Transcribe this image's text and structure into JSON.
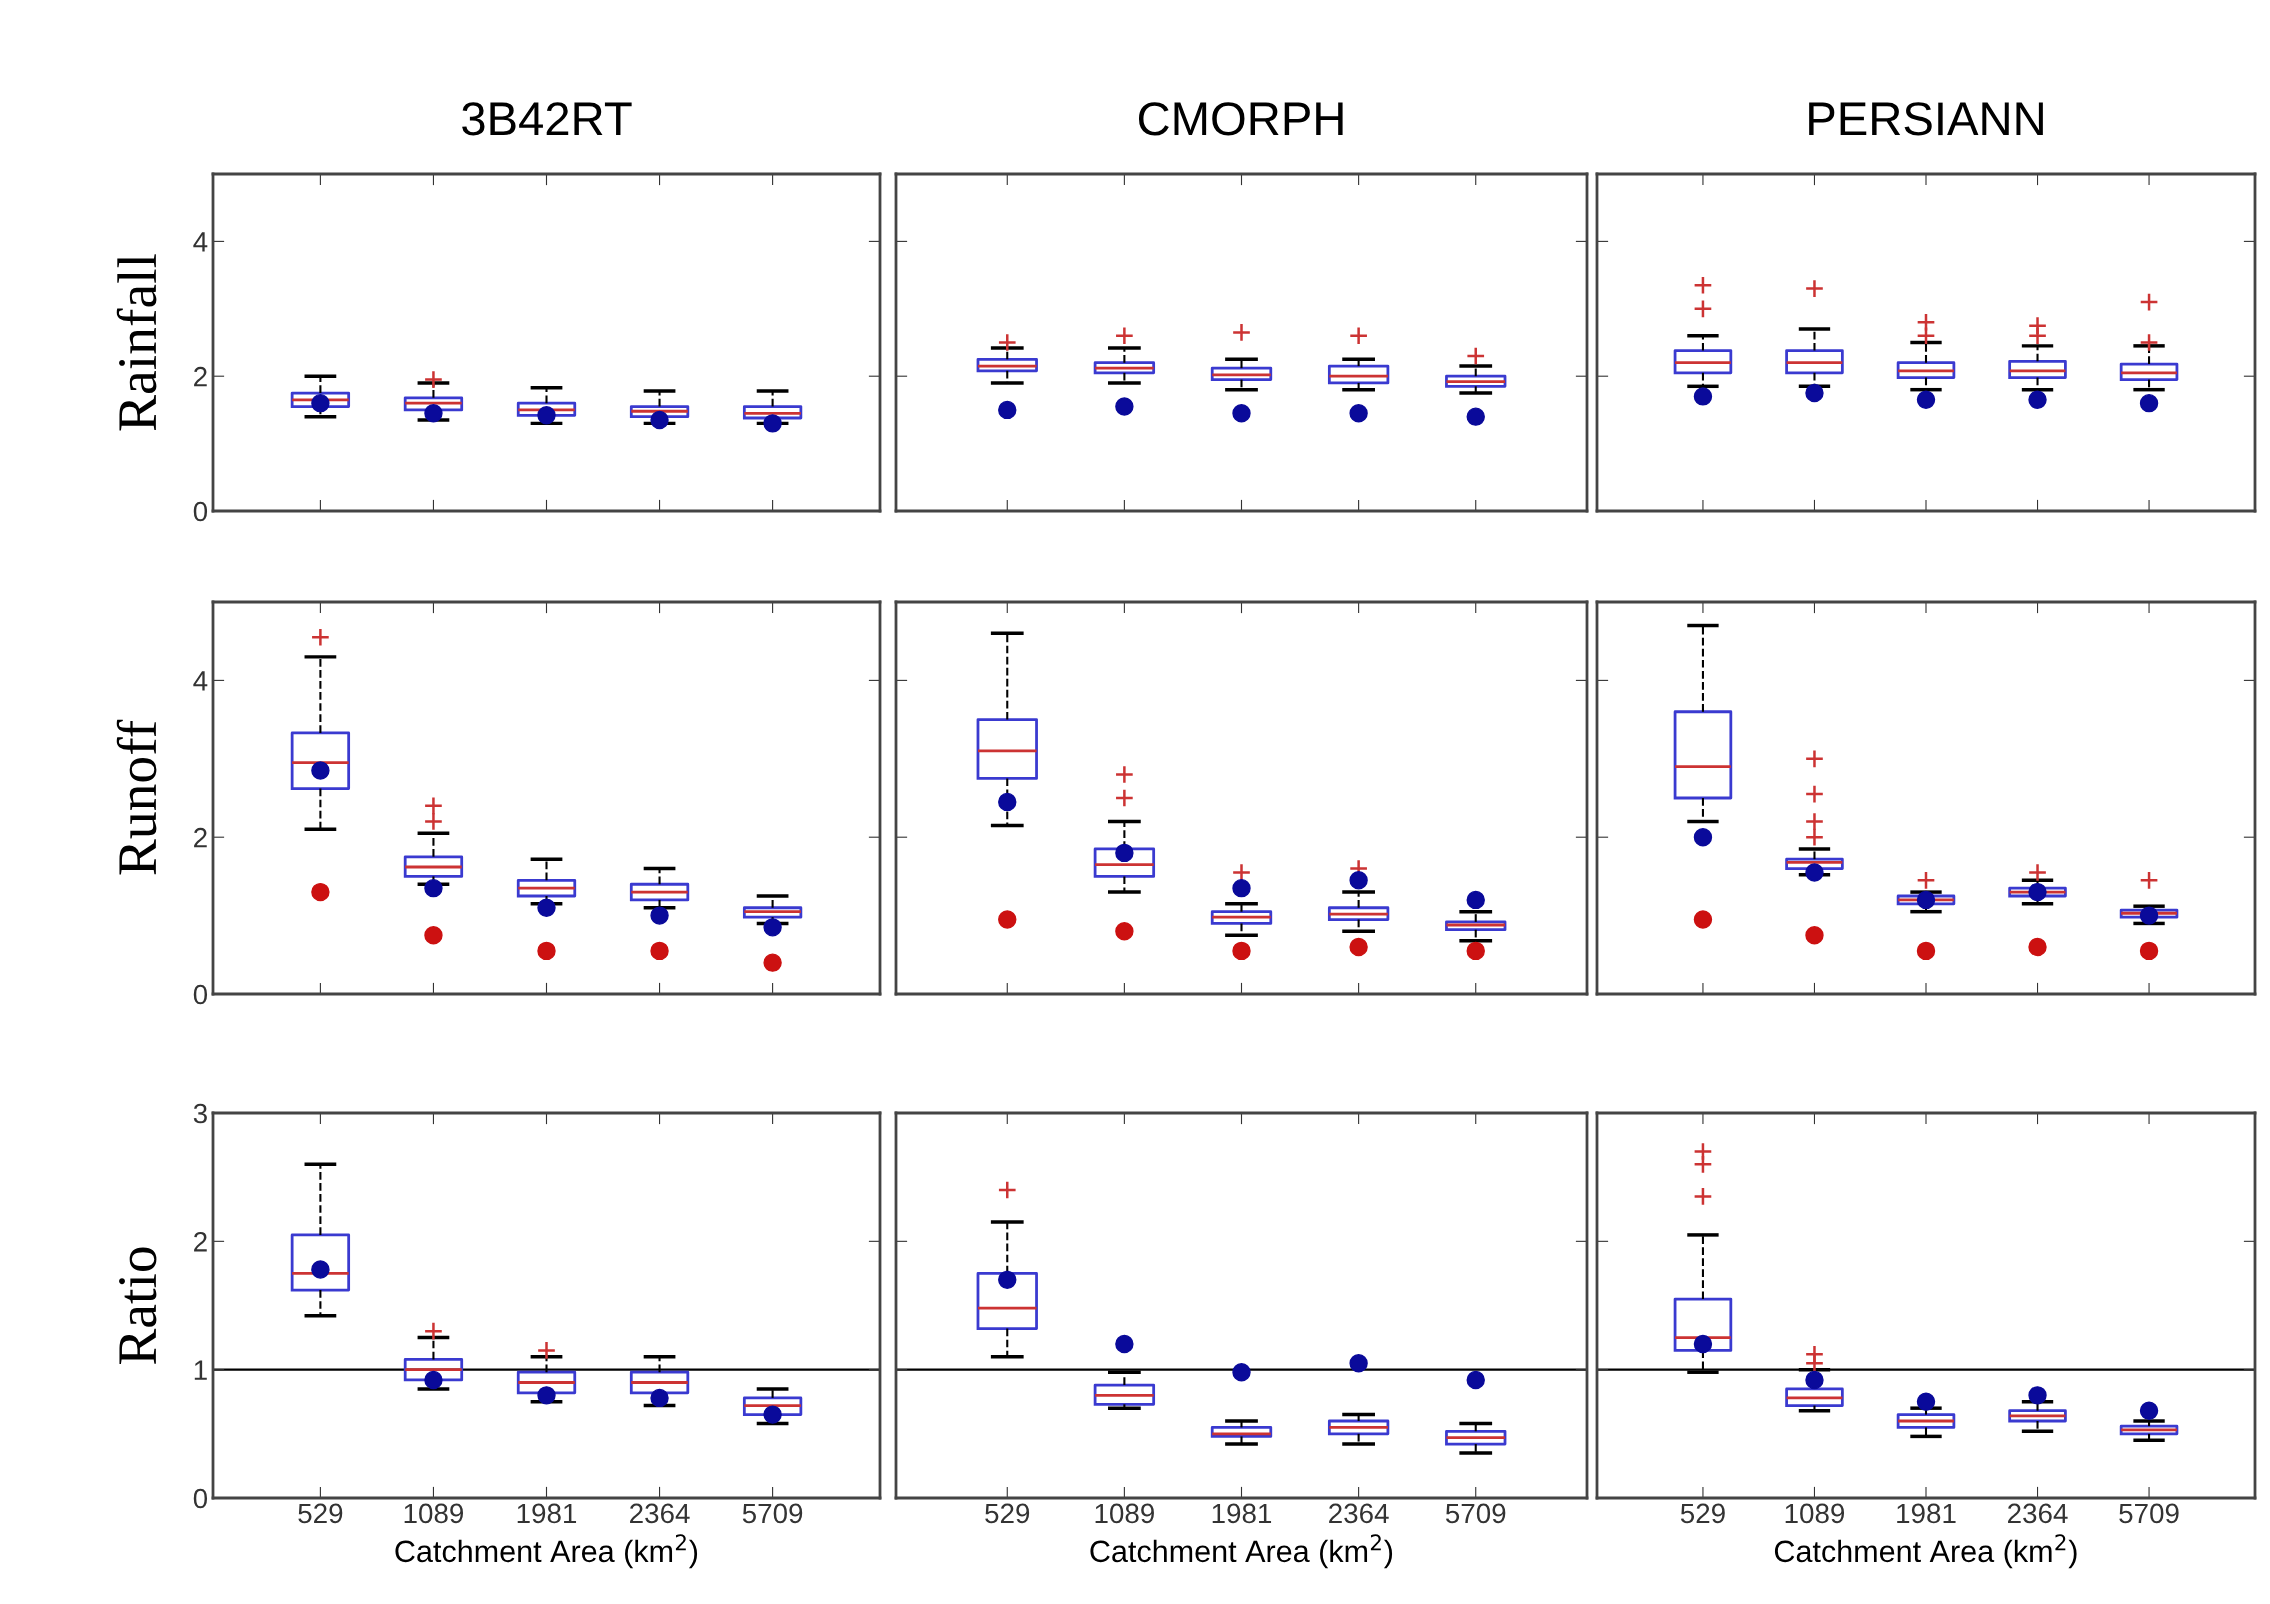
{
  "chart_data": [
    {
      "type": "box",
      "title": "3B42RT",
      "ylabel": "Rainfall",
      "categories": [
        "529",
        "1089",
        "1981",
        "2364",
        "5709"
      ],
      "ylim": [
        0,
        5
      ],
      "yticks": [
        0,
        2,
        4
      ],
      "tick_labels": "y",
      "series": [
        {
          "color": "#3a3ad0",
          "boxes": [
            {
              "low": 1.4,
              "q1": 1.55,
              "median": 1.65,
              "q3": 1.75,
              "high": 2.0
            },
            {
              "low": 1.35,
              "q1": 1.5,
              "median": 1.6,
              "q3": 1.68,
              "high": 1.9,
              "outliers": [
                1.95
              ]
            },
            {
              "low": 1.3,
              "q1": 1.42,
              "median": 1.5,
              "q3": 1.6,
              "high": 1.83
            },
            {
              "low": 1.3,
              "q1": 1.4,
              "median": 1.48,
              "q3": 1.55,
              "high": 1.78
            },
            {
              "low": 1.3,
              "q1": 1.38,
              "median": 1.45,
              "q3": 1.55,
              "high": 1.78
            }
          ]
        },
        {
          "type": "scatter",
          "color": "#0a0a9a",
          "marker": "circle",
          "values": [
            1.6,
            1.45,
            1.42,
            1.35,
            1.3
          ]
        }
      ]
    },
    {
      "type": "box",
      "title": "CMORPH",
      "categories": [
        "529",
        "1089",
        "1981",
        "2364",
        "5709"
      ],
      "ylim": [
        0,
        5
      ],
      "yticks": [
        0,
        2,
        4
      ],
      "tick_labels": false,
      "series": [
        {
          "color": "#3a3ad0",
          "boxes": [
            {
              "low": 1.9,
              "q1": 2.08,
              "median": 2.15,
              "q3": 2.25,
              "high": 2.42,
              "outliers": [
                2.5
              ]
            },
            {
              "low": 1.9,
              "q1": 2.05,
              "median": 2.12,
              "q3": 2.2,
              "high": 2.42,
              "outliers": [
                2.6
              ]
            },
            {
              "low": 1.8,
              "q1": 1.95,
              "median": 2.02,
              "q3": 2.12,
              "high": 2.25,
              "outliers": [
                2.65
              ]
            },
            {
              "low": 1.8,
              "q1": 1.9,
              "median": 2.0,
              "q3": 2.15,
              "high": 2.25,
              "outliers": [
                2.6
              ]
            },
            {
              "low": 1.75,
              "q1": 1.85,
              "median": 1.92,
              "q3": 2.0,
              "high": 2.15,
              "outliers": [
                2.3
              ]
            }
          ]
        },
        {
          "type": "scatter",
          "color": "#0a0a9a",
          "marker": "circle",
          "values": [
            1.5,
            1.55,
            1.45,
            1.45,
            1.4
          ]
        }
      ]
    },
    {
      "type": "box",
      "title": "PERSIANN",
      "categories": [
        "529",
        "1089",
        "1981",
        "2364",
        "5709"
      ],
      "ylim": [
        0,
        5
      ],
      "yticks": [
        0,
        2,
        4
      ],
      "tick_labels": false,
      "series": [
        {
          "color": "#3a3ad0",
          "boxes": [
            {
              "low": 1.85,
              "q1": 2.05,
              "median": 2.2,
              "q3": 2.38,
              "high": 2.6,
              "outliers": [
                3.0,
                3.35
              ]
            },
            {
              "low": 1.85,
              "q1": 2.05,
              "median": 2.2,
              "q3": 2.38,
              "high": 2.7,
              "outliers": [
                3.3
              ]
            },
            {
              "low": 1.8,
              "q1": 1.98,
              "median": 2.08,
              "q3": 2.2,
              "high": 2.5,
              "outliers": [
                2.6,
                2.8
              ]
            },
            {
              "low": 1.8,
              "q1": 1.98,
              "median": 2.08,
              "q3": 2.22,
              "high": 2.45,
              "outliers": [
                2.6,
                2.75
              ]
            },
            {
              "low": 1.8,
              "q1": 1.95,
              "median": 2.05,
              "q3": 2.18,
              "high": 2.45,
              "outliers": [
                2.5,
                3.1
              ]
            }
          ]
        },
        {
          "type": "scatter",
          "color": "#0a0a9a",
          "marker": "circle",
          "values": [
            1.7,
            1.75,
            1.65,
            1.65,
            1.6
          ]
        }
      ]
    },
    {
      "type": "box",
      "ylabel": "Runoff",
      "categories": [
        "529",
        "1089",
        "1981",
        "2364",
        "5709"
      ],
      "ylim": [
        0,
        5
      ],
      "yticks": [
        0,
        2,
        4
      ],
      "tick_labels": "y",
      "series": [
        {
          "color": "#3a3ad0",
          "boxes": [
            {
              "low": 2.1,
              "q1": 2.62,
              "median": 2.95,
              "q3": 3.33,
              "high": 4.3,
              "outliers": [
                4.55
              ]
            },
            {
              "low": 1.4,
              "q1": 1.5,
              "median": 1.62,
              "q3": 1.75,
              "high": 2.05,
              "outliers": [
                2.2,
                2.4
              ]
            },
            {
              "low": 1.15,
              "q1": 1.25,
              "median": 1.35,
              "q3": 1.45,
              "high": 1.72
            },
            {
              "low": 1.1,
              "q1": 1.2,
              "median": 1.3,
              "q3": 1.4,
              "high": 1.6
            },
            {
              "low": 0.9,
              "q1": 0.98,
              "median": 1.05,
              "q3": 1.1,
              "high": 1.25
            }
          ]
        },
        {
          "type": "scatter",
          "color": "#0a0a9a",
          "marker": "circle",
          "values": [
            2.85,
            1.35,
            1.1,
            1.0,
            0.85
          ]
        },
        {
          "type": "scatter",
          "color": "#cc1111",
          "marker": "circle",
          "values": [
            1.3,
            0.75,
            0.55,
            0.55,
            0.4
          ]
        }
      ]
    },
    {
      "type": "box",
      "categories": [
        "529",
        "1089",
        "1981",
        "2364",
        "5709"
      ],
      "ylim": [
        0,
        5
      ],
      "yticks": [
        0,
        2,
        4
      ],
      "tick_labels": false,
      "series": [
        {
          "color": "#3a3ad0",
          "boxes": [
            {
              "low": 2.15,
              "q1": 2.75,
              "median": 3.1,
              "q3": 3.5,
              "high": 4.6
            },
            {
              "low": 1.3,
              "q1": 1.5,
              "median": 1.65,
              "q3": 1.85,
              "high": 2.2,
              "outliers": [
                2.5,
                2.8
              ]
            },
            {
              "low": 0.75,
              "q1": 0.9,
              "median": 0.98,
              "q3": 1.05,
              "high": 1.15,
              "outliers": [
                1.55
              ]
            },
            {
              "low": 0.8,
              "q1": 0.95,
              "median": 1.02,
              "q3": 1.1,
              "high": 1.3,
              "outliers": [
                1.6
              ]
            },
            {
              "low": 0.68,
              "q1": 0.82,
              "median": 0.88,
              "q3": 0.92,
              "high": 1.05
            }
          ]
        },
        {
          "type": "scatter",
          "color": "#0a0a9a",
          "marker": "circle",
          "values": [
            2.45,
            1.8,
            1.35,
            1.45,
            1.2
          ]
        },
        {
          "type": "scatter",
          "color": "#cc1111",
          "marker": "circle",
          "values": [
            0.95,
            0.8,
            0.55,
            0.6,
            0.55
          ]
        }
      ]
    },
    {
      "type": "box",
      "categories": [
        "529",
        "1089",
        "1981",
        "2364",
        "5709"
      ],
      "ylim": [
        0,
        5
      ],
      "yticks": [
        0,
        2,
        4
      ],
      "tick_labels": false,
      "series": [
        {
          "color": "#3a3ad0",
          "boxes": [
            {
              "low": 2.2,
              "q1": 2.5,
              "median": 2.9,
              "q3": 3.6,
              "high": 4.7
            },
            {
              "low": 1.52,
              "q1": 1.6,
              "median": 1.68,
              "q3": 1.72,
              "high": 1.85,
              "outliers": [
                2.0,
                2.2,
                2.55,
                3.0
              ]
            },
            {
              "low": 1.05,
              "q1": 1.15,
              "median": 1.2,
              "q3": 1.25,
              "high": 1.3,
              "outliers": [
                1.45
              ]
            },
            {
              "low": 1.15,
              "q1": 1.25,
              "median": 1.3,
              "q3": 1.35,
              "high": 1.45,
              "outliers": [
                1.55
              ]
            },
            {
              "low": 0.9,
              "q1": 0.98,
              "median": 1.03,
              "q3": 1.07,
              "high": 1.12,
              "outliers": [
                1.45
              ]
            }
          ]
        },
        {
          "type": "scatter",
          "color": "#0a0a9a",
          "marker": "circle",
          "values": [
            2.0,
            1.55,
            1.2,
            1.3,
            1.0
          ]
        },
        {
          "type": "scatter",
          "color": "#cc1111",
          "marker": "circle",
          "values": [
            0.95,
            0.75,
            0.55,
            0.6,
            0.55
          ]
        }
      ]
    },
    {
      "type": "box",
      "ylabel": "Ratio",
      "xlabel": "Catchment Area (km$^{2}$)",
      "categories": [
        "529",
        "1089",
        "1981",
        "2364",
        "5709"
      ],
      "ylim": [
        0,
        3
      ],
      "yticks": [
        0,
        1,
        2,
        3
      ],
      "ref_lines": [
        {
          "axis": "y",
          "value": 1,
          "color": "#000000"
        }
      ],
      "series": [
        {
          "color": "#3a3ad0",
          "boxes": [
            {
              "low": 1.42,
              "q1": 1.62,
              "median": 1.75,
              "q3": 2.05,
              "high": 2.6
            },
            {
              "low": 0.85,
              "q1": 0.92,
              "median": 1.0,
              "q3": 1.08,
              "high": 1.25,
              "outliers": [
                1.3
              ]
            },
            {
              "low": 0.75,
              "q1": 0.82,
              "median": 0.9,
              "q3": 0.98,
              "high": 1.1,
              "outliers": [
                1.15
              ]
            },
            {
              "low": 0.72,
              "q1": 0.82,
              "median": 0.9,
              "q3": 0.98,
              "high": 1.1
            },
            {
              "low": 0.58,
              "q1": 0.65,
              "median": 0.72,
              "q3": 0.78,
              "high": 0.85
            }
          ]
        },
        {
          "type": "scatter",
          "color": "#0a0a9a",
          "marker": "circle",
          "values": [
            1.78,
            0.92,
            0.8,
            0.78,
            0.65
          ]
        }
      ]
    },
    {
      "type": "box",
      "xlabel": "Catchment Area (km$^{2}$)",
      "categories": [
        "529",
        "1089",
        "1981",
        "2364",
        "5709"
      ],
      "ylim": [
        0,
        3
      ],
      "yticks": [
        0,
        1,
        2,
        3
      ],
      "tick_labels": "x",
      "ref_lines": [
        {
          "axis": "y",
          "value": 1,
          "color": "#000000"
        }
      ],
      "series": [
        {
          "color": "#3a3ad0",
          "boxes": [
            {
              "low": 1.1,
              "q1": 1.32,
              "median": 1.48,
              "q3": 1.75,
              "high": 2.15,
              "outliers": [
                2.4
              ]
            },
            {
              "low": 0.7,
              "q1": 0.73,
              "median": 0.8,
              "q3": 0.88,
              "high": 0.98
            },
            {
              "low": 0.42,
              "q1": 0.48,
              "median": 0.5,
              "q3": 0.55,
              "high": 0.6
            },
            {
              "low": 0.42,
              "q1": 0.5,
              "median": 0.55,
              "q3": 0.6,
              "high": 0.65
            },
            {
              "low": 0.35,
              "q1": 0.42,
              "median": 0.47,
              "q3": 0.52,
              "high": 0.58
            }
          ]
        },
        {
          "type": "scatter",
          "color": "#0a0a9a",
          "marker": "circle",
          "values": [
            1.7,
            1.2,
            0.98,
            1.05,
            0.92
          ]
        }
      ]
    },
    {
      "type": "box",
      "xlabel": "Catchment Area (km$^{2}$)",
      "categories": [
        "529",
        "1089",
        "1981",
        "2364",
        "5709"
      ],
      "ylim": [
        0,
        3
      ],
      "yticks": [
        0,
        1,
        2,
        3
      ],
      "tick_labels": "x",
      "ref_lines": [
        {
          "axis": "y",
          "value": 1,
          "color": "#000000"
        }
      ],
      "series": [
        {
          "color": "#3a3ad0",
          "boxes": [
            {
              "low": 0.98,
              "q1": 1.15,
              "median": 1.25,
              "q3": 1.55,
              "high": 2.05,
              "outliers": [
                2.35,
                2.6,
                2.7
              ]
            },
            {
              "low": 0.68,
              "q1": 0.72,
              "median": 0.78,
              "q3": 0.85,
              "high": 1.0,
              "outliers": [
                1.05,
                1.12
              ]
            },
            {
              "low": 0.48,
              "q1": 0.55,
              "median": 0.6,
              "q3": 0.65,
              "high": 0.7
            },
            {
              "low": 0.52,
              "q1": 0.6,
              "median": 0.64,
              "q3": 0.68,
              "high": 0.75
            },
            {
              "low": 0.45,
              "q1": 0.5,
              "median": 0.53,
              "q3": 0.56,
              "high": 0.6
            }
          ]
        },
        {
          "type": "scatter",
          "color": "#0a0a9a",
          "marker": "circle",
          "values": [
            1.2,
            0.92,
            0.75,
            0.8,
            0.68
          ]
        }
      ]
    }
  ]
}
